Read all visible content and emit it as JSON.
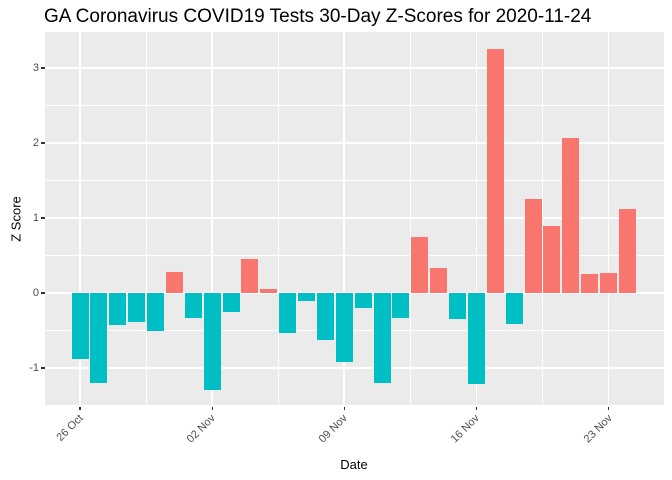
{
  "title": "GA Coronavirus COVID19 Tests 30-Day Z-Scores for 2020-11-24",
  "chart_data": {
    "type": "bar",
    "title": "GA Coronavirus COVID19 Tests 30-Day Z-Scores for 2020-11-24",
    "xlabel": "Date",
    "ylabel": "Z Score",
    "dates": [
      "2020-10-26",
      "2020-10-27",
      "2020-10-28",
      "2020-10-29",
      "2020-10-30",
      "2020-10-31",
      "2020-11-01",
      "2020-11-02",
      "2020-11-03",
      "2020-11-04",
      "2020-11-05",
      "2020-11-06",
      "2020-11-07",
      "2020-11-08",
      "2020-11-09",
      "2020-11-10",
      "2020-11-11",
      "2020-11-12",
      "2020-11-13",
      "2020-11-14",
      "2020-11-15",
      "2020-11-16",
      "2020-11-17",
      "2020-11-18",
      "2020-11-19",
      "2020-11-20",
      "2020-11-21",
      "2020-11-22",
      "2020-11-23",
      "2020-11-24"
    ],
    "values": [
      -0.88,
      -1.2,
      -0.42,
      -0.39,
      -0.51,
      0.28,
      -0.33,
      -1.29,
      -0.25,
      0.45,
      0.06,
      -0.53,
      -0.11,
      -0.63,
      -0.92,
      -0.2,
      -1.2,
      -0.33,
      0.75,
      0.34,
      -0.34,
      -1.21,
      3.25,
      -0.41,
      1.25,
      0.89,
      2.07,
      0.26,
      0.27,
      1.12
    ],
    "x_tick_labels": [
      "26 Oct",
      "02 Nov",
      "09 Nov",
      "16 Nov",
      "23 Nov"
    ],
    "x_tick_day_index": [
      0,
      7,
      14,
      21,
      28
    ],
    "y_tick_labels": [
      "-1",
      "0",
      "1",
      "2",
      "3"
    ],
    "y_ticks": [
      -1,
      0,
      1,
      2,
      3
    ],
    "ylim": [
      -1.51,
      3.49
    ],
    "grid": "on",
    "legend": "none",
    "positive_color": "#F8766D",
    "negative_color": "#00BFC4",
    "panel_bg": "#EBEBEB",
    "grid_color": "#FFFFFF",
    "axis_text_color": "#4D4D4D",
    "tick_color": "#333333"
  }
}
